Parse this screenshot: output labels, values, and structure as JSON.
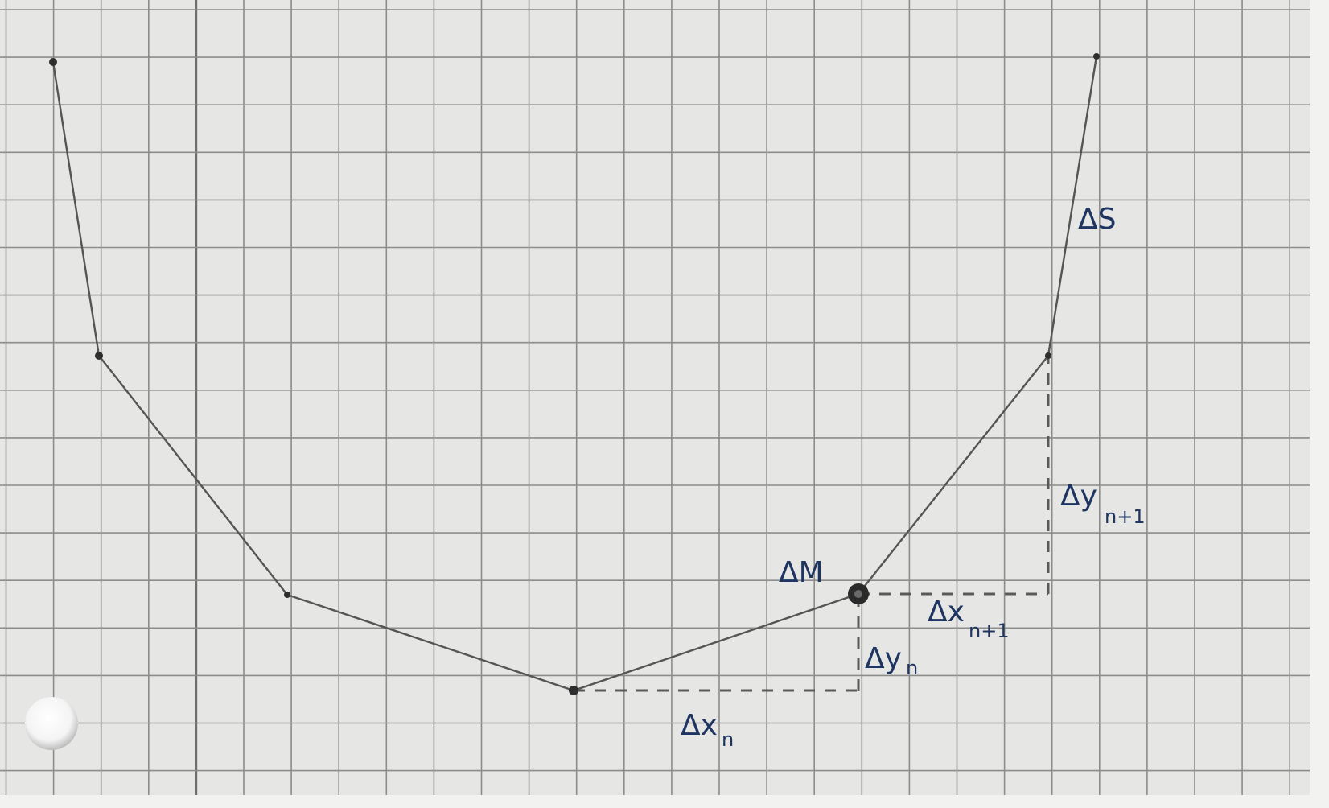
{
  "diagram": {
    "labels": {
      "arc_length": "ΔS",
      "mass_element": "ΔM",
      "dx_n": {
        "base": "Δx",
        "sub": "n"
      },
      "dy_n": {
        "base": "Δy",
        "sub": "n"
      },
      "dx_n1": {
        "base": "Δx",
        "sub": "n+1"
      },
      "dy_n1": {
        "base": "Δy",
        "sub": "n+1"
      }
    },
    "colors": {
      "paper": "#e6e6e4",
      "grid": "#8c8c8c",
      "pencil": "#555555",
      "ink": "#1f3561"
    }
  }
}
